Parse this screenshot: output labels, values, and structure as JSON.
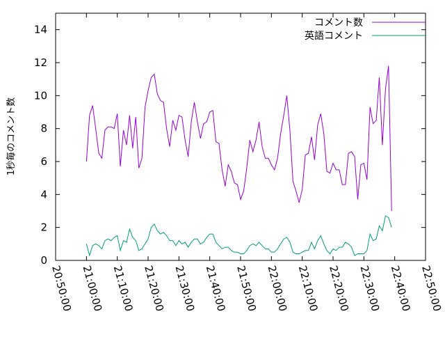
{
  "chart_data": {
    "type": "line",
    "title": "",
    "xlabel": "",
    "ylabel": "1秒毎のコメント数",
    "xlim": [
      "20:50:00",
      "22:50:00"
    ],
    "ylim": [
      0,
      15
    ],
    "x_tick_labels": [
      "20:50:00",
      "21:00:00",
      "21:10:00",
      "21:20:00",
      "21:30:00",
      "21:40:00",
      "21:50:00",
      "22:00:00",
      "22:10:00",
      "22:20:00",
      "22:30:00",
      "22:40:00",
      "22:50:00"
    ],
    "y_tick_labels": [
      "0",
      "2",
      "4",
      "6",
      "8",
      "10",
      "12",
      "14"
    ],
    "grid": false,
    "legend_position": "top-right",
    "series": [
      {
        "name": "コメント数",
        "color": "#9400d3",
        "points": [
          [
            "21:00:00",
            6.0
          ],
          [
            "21:01:00",
            8.8
          ],
          [
            "21:02:00",
            9.4
          ],
          [
            "21:03:00",
            8.0
          ],
          [
            "21:04:00",
            6.5
          ],
          [
            "21:05:00",
            6.2
          ],
          [
            "21:06:00",
            7.9
          ],
          [
            "21:07:00",
            8.1
          ],
          [
            "21:08:00",
            8.1
          ],
          [
            "21:09:00",
            8.0
          ],
          [
            "21:10:00",
            8.9
          ],
          [
            "21:11:00",
            5.7
          ],
          [
            "21:12:00",
            7.9
          ],
          [
            "21:13:00",
            7.0
          ],
          [
            "21:14:00",
            8.8
          ],
          [
            "21:15:00",
            6.8
          ],
          [
            "21:16:00",
            8.7
          ],
          [
            "21:17:00",
            5.6
          ],
          [
            "21:18:00",
            6.2
          ],
          [
            "21:19:00",
            9.3
          ],
          [
            "21:20:00",
            10.3
          ],
          [
            "21:21:00",
            11.1
          ],
          [
            "21:22:00",
            11.3
          ],
          [
            "21:23:00",
            10.1
          ],
          [
            "21:24:00",
            9.7
          ],
          [
            "21:25:00",
            9.6
          ],
          [
            "21:26:00",
            8.0
          ],
          [
            "21:27:00",
            6.9
          ],
          [
            "21:28:00",
            8.5
          ],
          [
            "21:29:00",
            7.9
          ],
          [
            "21:30:00",
            8.8
          ],
          [
            "21:31:00",
            8.7
          ],
          [
            "21:32:00",
            7.3
          ],
          [
            "21:33:00",
            6.3
          ],
          [
            "21:34:00",
            8.4
          ],
          [
            "21:35:00",
            9.6
          ],
          [
            "21:36:00",
            8.4
          ],
          [
            "21:37:00",
            7.4
          ],
          [
            "21:38:00",
            8.3
          ],
          [
            "21:39:00",
            8.4
          ],
          [
            "21:40:00",
            9.0
          ],
          [
            "21:41:00",
            9.1
          ],
          [
            "21:42:00",
            7.2
          ],
          [
            "21:43:00",
            7.1
          ],
          [
            "21:44:00",
            5.5
          ],
          [
            "21:45:00",
            4.5
          ],
          [
            "21:46:00",
            5.8
          ],
          [
            "21:47:00",
            5.4
          ],
          [
            "21:48:00",
            4.7
          ],
          [
            "21:49:00",
            4.6
          ],
          [
            "21:50:00",
            3.7
          ],
          [
            "21:51:00",
            4.2
          ],
          [
            "21:52:00",
            5.6
          ],
          [
            "21:53:00",
            7.3
          ],
          [
            "21:54:00",
            6.6
          ],
          [
            "21:55:00",
            7.3
          ],
          [
            "21:56:00",
            8.4
          ],
          [
            "21:57:00",
            6.9
          ],
          [
            "21:58:00",
            6.2
          ],
          [
            "21:59:00",
            6.2
          ],
          [
            "22:00:00",
            5.8
          ],
          [
            "22:01:00",
            5.5
          ],
          [
            "22:02:00",
            6.2
          ],
          [
            "22:03:00",
            7.7
          ],
          [
            "22:04:00",
            8.8
          ],
          [
            "22:05:00",
            10.0
          ],
          [
            "22:06:00",
            7.9
          ],
          [
            "22:07:00",
            4.8
          ],
          [
            "22:08:00",
            4.2
          ],
          [
            "22:09:00",
            3.5
          ],
          [
            "22:10:00",
            4.3
          ],
          [
            "22:11:00",
            6.4
          ],
          [
            "22:12:00",
            6.5
          ],
          [
            "22:13:00",
            7.5
          ],
          [
            "22:14:00",
            6.1
          ],
          [
            "22:15:00",
            8.2
          ],
          [
            "22:16:00",
            8.9
          ],
          [
            "22:17:00",
            7.7
          ],
          [
            "22:18:00",
            5.4
          ],
          [
            "22:19:00",
            5.3
          ],
          [
            "22:20:00",
            5.9
          ],
          [
            "22:21:00",
            5.5
          ],
          [
            "22:22:00",
            5.5
          ],
          [
            "22:23:00",
            4.6
          ],
          [
            "22:24:00",
            4.6
          ],
          [
            "22:25:00",
            6.5
          ],
          [
            "22:26:00",
            6.6
          ],
          [
            "22:27:00",
            6.3
          ],
          [
            "22:28:00",
            3.7
          ],
          [
            "22:29:00",
            5.8
          ],
          [
            "22:30:00",
            5.9
          ],
          [
            "22:31:00",
            4.9
          ],
          [
            "22:32:00",
            9.3
          ],
          [
            "22:33:00",
            8.3
          ],
          [
            "22:34:00",
            8.5
          ],
          [
            "22:35:00",
            11.1
          ],
          [
            "22:36:00",
            7.0
          ],
          [
            "22:37:00",
            10.4
          ],
          [
            "22:38:00",
            11.8
          ],
          [
            "22:39:00",
            3.0
          ]
        ]
      },
      {
        "name": "英語コメント",
        "color": "#009e73",
        "points": [
          [
            "21:00:00",
            1.0
          ],
          [
            "21:01:00",
            0.3
          ],
          [
            "21:02:00",
            0.9
          ],
          [
            "21:03:00",
            1.0
          ],
          [
            "21:04:00",
            0.9
          ],
          [
            "21:05:00",
            0.7
          ],
          [
            "21:06:00",
            1.2
          ],
          [
            "21:07:00",
            1.3
          ],
          [
            "21:08:00",
            1.2
          ],
          [
            "21:09:00",
            1.4
          ],
          [
            "21:10:00",
            1.5
          ],
          [
            "21:11:00",
            0.6
          ],
          [
            "21:12:00",
            1.2
          ],
          [
            "21:13:00",
            1.1
          ],
          [
            "21:14:00",
            1.9
          ],
          [
            "21:15:00",
            1.4
          ],
          [
            "21:16:00",
            1.2
          ],
          [
            "21:17:00",
            0.6
          ],
          [
            "21:18:00",
            0.7
          ],
          [
            "21:19:00",
            1.0
          ],
          [
            "21:20:00",
            1.3
          ],
          [
            "21:21:00",
            2.0
          ],
          [
            "21:22:00",
            2.2
          ],
          [
            "21:23:00",
            1.8
          ],
          [
            "21:24:00",
            1.6
          ],
          [
            "21:25:00",
            1.7
          ],
          [
            "21:26:00",
            1.5
          ],
          [
            "21:27:00",
            1.2
          ],
          [
            "21:28:00",
            1.2
          ],
          [
            "21:29:00",
            0.9
          ],
          [
            "21:30:00",
            1.2
          ],
          [
            "21:31:00",
            1.0
          ],
          [
            "21:32:00",
            1.1
          ],
          [
            "21:33:00",
            0.8
          ],
          [
            "21:34:00",
            1.1
          ],
          [
            "21:35:00",
            1.3
          ],
          [
            "21:36:00",
            1.3
          ],
          [
            "21:37:00",
            1.0
          ],
          [
            "21:38:00",
            1.1
          ],
          [
            "21:39:00",
            1.4
          ],
          [
            "21:40:00",
            1.6
          ],
          [
            "21:41:00",
            1.6
          ],
          [
            "21:42:00",
            1.1
          ],
          [
            "21:43:00",
            0.9
          ],
          [
            "21:44:00",
            0.7
          ],
          [
            "21:45:00",
            0.8
          ],
          [
            "21:46:00",
            0.8
          ],
          [
            "21:47:00",
            0.6
          ],
          [
            "21:48:00",
            0.5
          ],
          [
            "21:49:00",
            0.5
          ],
          [
            "21:50:00",
            0.4
          ],
          [
            "21:51:00",
            0.4
          ],
          [
            "21:52:00",
            0.6
          ],
          [
            "21:53:00",
            0.9
          ],
          [
            "21:54:00",
            1.0
          ],
          [
            "21:55:00",
            0.9
          ],
          [
            "21:56:00",
            1.1
          ],
          [
            "21:57:00",
            0.9
          ],
          [
            "21:58:00",
            0.7
          ],
          [
            "21:59:00",
            0.7
          ],
          [
            "22:00:00",
            0.5
          ],
          [
            "22:01:00",
            0.5
          ],
          [
            "22:02:00",
            0.7
          ],
          [
            "22:03:00",
            1.0
          ],
          [
            "22:04:00",
            1.3
          ],
          [
            "22:05:00",
            1.4
          ],
          [
            "22:06:00",
            1.1
          ],
          [
            "22:07:00",
            0.5
          ],
          [
            "22:08:00",
            0.4
          ],
          [
            "22:09:00",
            0.4
          ],
          [
            "22:10:00",
            0.5
          ],
          [
            "22:11:00",
            0.6
          ],
          [
            "22:12:00",
            0.6
          ],
          [
            "22:13:00",
            1.1
          ],
          [
            "22:14:00",
            0.7
          ],
          [
            "22:15:00",
            1.2
          ],
          [
            "22:16:00",
            1.5
          ],
          [
            "22:17:00",
            1.0
          ],
          [
            "22:18:00",
            0.6
          ],
          [
            "22:19:00",
            0.4
          ],
          [
            "22:20:00",
            0.7
          ],
          [
            "22:21:00",
            0.6
          ],
          [
            "22:22:00",
            0.8
          ],
          [
            "22:23:00",
            0.8
          ],
          [
            "22:24:00",
            1.1
          ],
          [
            "22:25:00",
            1.0
          ],
          [
            "22:26:00",
            0.8
          ],
          [
            "22:27:00",
            0.3
          ],
          [
            "22:28:00",
            0.4
          ],
          [
            "22:29:00",
            0.4
          ],
          [
            "22:30:00",
            0.4
          ],
          [
            "22:31:00",
            0.6
          ],
          [
            "22:32:00",
            1.6
          ],
          [
            "22:33:00",
            1.2
          ],
          [
            "22:34:00",
            1.3
          ],
          [
            "22:35:00",
            2.1
          ],
          [
            "22:36:00",
            1.8
          ],
          [
            "22:37:00",
            2.7
          ],
          [
            "22:38:00",
            2.6
          ],
          [
            "22:39:00",
            2.0
          ]
        ]
      }
    ]
  }
}
